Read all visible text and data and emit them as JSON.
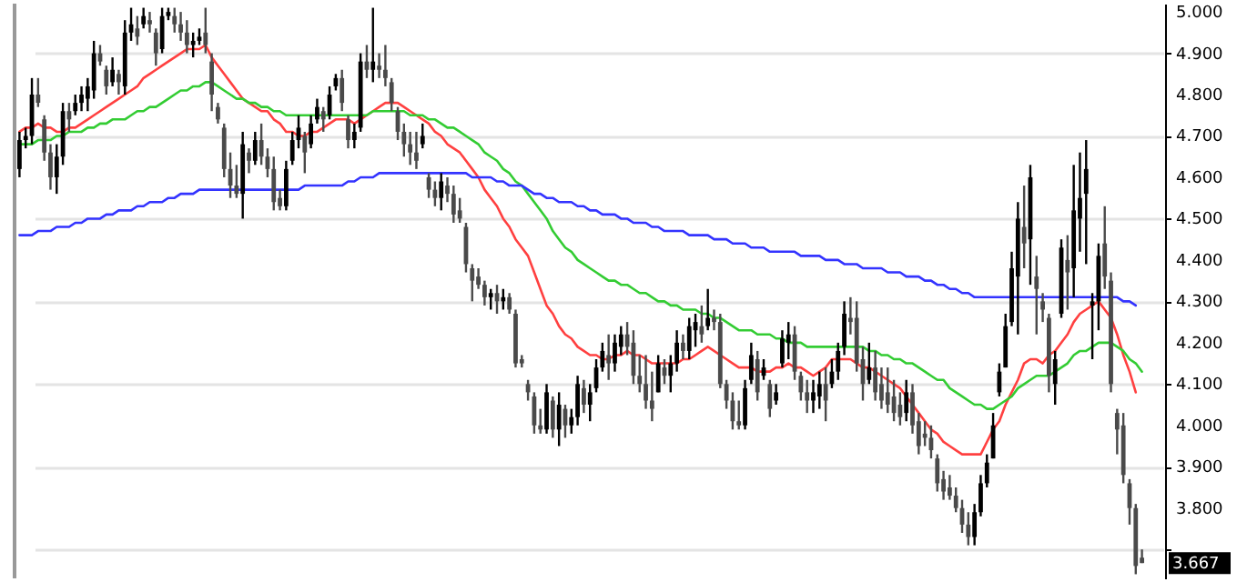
{
  "chart_data": {
    "type": "candlestick",
    "categories": [
      null,
      null,
      null,
      null,
      null,
      null,
      null,
      null,
      null,
      null,
      null,
      null,
      null,
      null,
      null,
      null,
      null,
      null,
      null,
      null,
      null,
      null,
      null,
      null,
      null,
      null,
      null,
      null,
      null,
      null,
      null,
      null,
      null,
      null,
      null,
      null,
      null,
      null,
      null,
      null,
      null,
      null,
      null,
      null,
      null,
      null,
      null,
      null,
      null,
      null,
      null,
      null,
      null,
      null,
      null,
      null,
      null,
      null,
      null,
      null,
      null,
      null,
      null,
      null,
      null,
      null,
      null,
      null,
      null,
      null,
      null,
      null,
      null,
      null,
      null,
      null,
      null,
      null,
      null,
      null,
      null,
      null,
      null,
      null,
      null,
      null,
      null,
      null,
      null,
      null,
      null,
      null,
      null,
      null,
      null,
      null,
      null,
      null,
      null,
      null,
      null,
      null,
      null,
      null,
      null,
      null,
      null,
      null,
      null,
      null,
      null,
      null,
      null,
      null,
      null,
      null,
      null,
      null,
      null,
      null,
      null,
      null,
      null,
      null,
      null,
      null,
      null,
      null,
      null,
      null,
      null,
      null,
      null,
      null,
      null,
      null,
      null,
      null,
      null,
      null,
      null,
      null,
      null,
      null,
      null,
      null,
      null,
      null,
      null,
      null,
      null,
      null,
      null,
      null,
      null,
      null,
      null,
      null,
      null,
      null,
      null,
      null,
      null,
      null,
      null,
      null,
      null,
      null,
      null,
      null,
      null,
      null,
      null,
      null,
      null,
      null,
      null,
      null,
      null,
      null,
      null,
      null
    ],
    "ohlc": [
      [
        4.62,
        4.71,
        4.6,
        4.69
      ],
      [
        4.69,
        4.72,
        4.67,
        4.7
      ],
      [
        4.7,
        4.84,
        4.68,
        4.8
      ],
      [
        4.8,
        4.84,
        4.77,
        4.78
      ],
      [
        4.74,
        4.75,
        4.64,
        4.66
      ],
      [
        4.66,
        4.68,
        4.57,
        4.6
      ],
      [
        4.6,
        4.68,
        4.56,
        4.65
      ],
      [
        4.65,
        4.78,
        4.63,
        4.76
      ],
      [
        4.76,
        4.78,
        4.71,
        4.74
      ],
      [
        4.76,
        4.8,
        4.75,
        4.78
      ],
      [
        4.78,
        4.82,
        4.76,
        4.8
      ],
      [
        4.79,
        4.84,
        4.76,
        4.82
      ],
      [
        4.81,
        4.93,
        4.79,
        4.9
      ],
      [
        4.9,
        4.92,
        4.87,
        4.88
      ],
      [
        4.86,
        4.87,
        4.8,
        4.82
      ],
      [
        4.83,
        4.89,
        4.82,
        4.86
      ],
      [
        4.85,
        4.86,
        4.8,
        4.83
      ],
      [
        4.82,
        4.98,
        4.8,
        4.95
      ],
      [
        4.95,
        5.01,
        4.93,
        4.97
      ],
      [
        4.96,
        4.99,
        4.92,
        4.94
      ],
      [
        4.97,
        5.01,
        4.96,
        4.99
      ],
      [
        4.98,
        5.0,
        4.95,
        4.97
      ],
      [
        4.95,
        4.96,
        4.87,
        4.9
      ],
      [
        4.91,
        5.01,
        4.9,
        4.99
      ],
      [
        4.99,
        5.01,
        4.98,
        5.0
      ],
      [
        4.99,
        5.01,
        4.95,
        4.97
      ],
      [
        4.97,
        5.0,
        4.93,
        4.95
      ],
      [
        4.95,
        4.98,
        4.9,
        4.92
      ],
      [
        4.92,
        4.95,
        4.89,
        4.93
      ],
      [
        4.93,
        4.96,
        4.92,
        4.94
      ],
      [
        4.95,
        5.01,
        4.9,
        4.92
      ],
      [
        4.88,
        4.9,
        4.76,
        4.8
      ],
      [
        4.77,
        4.78,
        4.73,
        4.74
      ],
      [
        4.72,
        4.73,
        4.6,
        4.62
      ],
      [
        4.62,
        4.66,
        4.55,
        4.58
      ],
      [
        4.58,
        4.63,
        4.55,
        4.56
      ],
      [
        4.56,
        4.71,
        4.5,
        4.68
      ],
      [
        4.66,
        4.67,
        4.61,
        4.64
      ],
      [
        4.64,
        4.71,
        4.63,
        4.69
      ],
      [
        4.69,
        4.73,
        4.63,
        4.65
      ],
      [
        4.65,
        4.67,
        4.6,
        4.62
      ],
      [
        4.62,
        4.65,
        4.52,
        4.54
      ],
      [
        4.55,
        4.57,
        4.52,
        4.53
      ],
      [
        4.53,
        4.64,
        4.52,
        4.62
      ],
      [
        4.64,
        4.71,
        4.63,
        4.69
      ],
      [
        4.69,
        4.75,
        4.67,
        4.72
      ],
      [
        4.7,
        4.71,
        4.61,
        4.66
      ],
      [
        4.68,
        4.75,
        4.67,
        4.73
      ],
      [
        4.74,
        4.79,
        4.73,
        4.77
      ],
      [
        4.76,
        4.77,
        4.71,
        4.74
      ],
      [
        4.75,
        4.82,
        4.74,
        4.8
      ],
      [
        4.82,
        4.85,
        4.81,
        4.84
      ],
      [
        4.84,
        4.86,
        4.76,
        4.78
      ],
      [
        4.74,
        4.75,
        4.67,
        4.69
      ],
      [
        4.69,
        4.73,
        4.67,
        4.71
      ],
      [
        4.72,
        4.9,
        4.71,
        4.88
      ],
      [
        4.88,
        4.92,
        4.84,
        4.86
      ],
      [
        4.86,
        5.01,
        4.83,
        4.88
      ],
      [
        4.87,
        4.9,
        4.84,
        4.86
      ],
      [
        4.86,
        4.92,
        4.82,
        4.84
      ],
      [
        4.83,
        4.84,
        4.76,
        4.78
      ],
      [
        4.76,
        4.77,
        4.69,
        4.71
      ],
      [
        4.71,
        4.73,
        4.65,
        4.68
      ],
      [
        4.68,
        4.71,
        4.63,
        4.66
      ],
      [
        4.66,
        4.71,
        4.62,
        4.64
      ],
      [
        4.68,
        4.73,
        4.67,
        4.7
      ],
      [
        4.6,
        4.61,
        4.55,
        4.57
      ],
      [
        4.57,
        4.59,
        4.53,
        4.55
      ],
      [
        4.55,
        4.61,
        4.52,
        4.59
      ],
      [
        4.58,
        4.6,
        4.54,
        4.56
      ],
      [
        4.56,
        4.58,
        4.49,
        4.51
      ],
      [
        4.52,
        4.55,
        4.49,
        4.5
      ],
      [
        4.48,
        4.49,
        4.37,
        4.39
      ],
      [
        4.38,
        4.39,
        4.3,
        4.35
      ],
      [
        4.36,
        4.38,
        4.33,
        4.34
      ],
      [
        4.34,
        4.35,
        4.29,
        4.31
      ],
      [
        4.31,
        4.33,
        4.28,
        4.32
      ],
      [
        4.32,
        4.34,
        4.27,
        4.3
      ],
      [
        4.3,
        4.33,
        4.28,
        4.31
      ],
      [
        4.31,
        4.32,
        4.27,
        4.28
      ],
      [
        4.27,
        4.28,
        4.14,
        4.15
      ],
      [
        4.16,
        4.17,
        4.14,
        4.15
      ],
      [
        4.1,
        4.11,
        4.06,
        4.08
      ],
      [
        4.07,
        4.08,
        3.98,
        4.0
      ],
      [
        4.0,
        4.04,
        3.98,
        3.99
      ],
      [
        3.99,
        4.1,
        3.98,
        4.08
      ],
      [
        4.06,
        4.07,
        3.97,
        3.99
      ],
      [
        3.99,
        4.08,
        3.95,
        4.05
      ],
      [
        4.04,
        4.05,
        3.97,
        4.0
      ],
      [
        4.0,
        4.04,
        3.98,
        4.02
      ],
      [
        4.02,
        4.12,
        4.0,
        4.1
      ],
      [
        4.09,
        4.11,
        4.03,
        4.05
      ],
      [
        4.05,
        4.1,
        4.01,
        4.08
      ],
      [
        4.09,
        4.16,
        4.08,
        4.14
      ],
      [
        4.14,
        4.2,
        4.13,
        4.18
      ],
      [
        4.17,
        4.22,
        4.11,
        4.15
      ],
      [
        4.15,
        4.22,
        4.13,
        4.2
      ],
      [
        4.19,
        4.24,
        4.17,
        4.22
      ],
      [
        4.22,
        4.25,
        4.17,
        4.19
      ],
      [
        4.2,
        4.23,
        4.1,
        4.12
      ],
      [
        4.12,
        4.17,
        4.08,
        4.1
      ],
      [
        4.1,
        4.17,
        4.04,
        4.06
      ],
      [
        4.06,
        4.13,
        4.01,
        4.04
      ],
      [
        4.08,
        4.17,
        4.08,
        4.15
      ],
      [
        4.14,
        4.16,
        4.1,
        4.12
      ],
      [
        4.12,
        4.17,
        4.08,
        4.15
      ],
      [
        4.15,
        4.23,
        4.13,
        4.2
      ],
      [
        4.2,
        4.22,
        4.16,
        4.18
      ],
      [
        4.18,
        4.26,
        4.16,
        4.24
      ],
      [
        4.23,
        4.27,
        4.19,
        4.25
      ],
      [
        4.24,
        4.29,
        4.2,
        4.22
      ],
      [
        4.24,
        4.33,
        4.23,
        4.26
      ],
      [
        4.26,
        4.28,
        4.23,
        4.25
      ],
      [
        4.25,
        4.27,
        4.09,
        4.1
      ],
      [
        4.1,
        4.11,
        4.04,
        4.06
      ],
      [
        4.06,
        4.08,
        3.99,
        4.01
      ],
      [
        4.01,
        4.06,
        3.99,
        4.0
      ],
      [
        4.0,
        4.11,
        3.99,
        4.09
      ],
      [
        4.11,
        4.2,
        4.1,
        4.17
      ],
      [
        4.16,
        4.18,
        4.06,
        4.08
      ],
      [
        4.12,
        4.16,
        4.11,
        4.14
      ],
      [
        4.1,
        4.11,
        4.02,
        4.04
      ],
      [
        4.06,
        4.1,
        4.05,
        4.08
      ],
      [
        4.15,
        4.23,
        4.14,
        4.21
      ],
      [
        4.2,
        4.25,
        4.16,
        4.22
      ],
      [
        4.22,
        4.24,
        4.11,
        4.13
      ],
      [
        4.12,
        4.13,
        4.06,
        4.08
      ],
      [
        4.08,
        4.11,
        4.03,
        4.06
      ],
      [
        4.06,
        4.11,
        4.03,
        4.08
      ],
      [
        4.07,
        4.13,
        4.04,
        4.1
      ],
      [
        4.1,
        4.14,
        4.01,
        4.06
      ],
      [
        4.1,
        4.16,
        4.09,
        4.13
      ],
      [
        4.13,
        4.2,
        4.11,
        4.18
      ],
      [
        4.19,
        4.3,
        4.17,
        4.27
      ],
      [
        4.26,
        4.31,
        4.22,
        4.25
      ],
      [
        4.26,
        4.3,
        4.13,
        4.15
      ],
      [
        4.16,
        4.19,
        4.06,
        4.1
      ],
      [
        4.11,
        4.2,
        4.1,
        4.14
      ],
      [
        4.14,
        4.18,
        4.06,
        4.08
      ],
      [
        4.1,
        4.14,
        4.04,
        4.06
      ],
      [
        4.08,
        4.14,
        4.03,
        4.05
      ],
      [
        4.07,
        4.11,
        4.01,
        4.03
      ],
      [
        4.05,
        4.08,
        4.0,
        4.02
      ],
      [
        4.03,
        4.11,
        4.01,
        4.08
      ],
      [
        4.08,
        4.1,
        3.98,
        4.0
      ],
      [
        4.01,
        4.03,
        3.93,
        3.95
      ],
      [
        3.98,
        4.01,
        3.95,
        3.97
      ],
      [
        3.97,
        4.0,
        3.92,
        3.94
      ],
      [
        3.92,
        3.93,
        3.84,
        3.86
      ],
      [
        3.87,
        3.89,
        3.82,
        3.84
      ],
      [
        3.85,
        3.88,
        3.82,
        3.83
      ],
      [
        3.83,
        3.85,
        3.79,
        3.8
      ],
      [
        3.8,
        3.82,
        3.74,
        3.76
      ],
      [
        3.76,
        3.79,
        3.71,
        3.73
      ],
      [
        3.73,
        3.81,
        3.71,
        3.79
      ],
      [
        3.79,
        3.88,
        3.78,
        3.86
      ],
      [
        3.86,
        3.93,
        3.85,
        3.91
      ],
      [
        3.92,
        4.03,
        3.92,
        4.0
      ],
      [
        4.08,
        4.15,
        4.07,
        4.13
      ],
      [
        4.14,
        4.27,
        4.14,
        4.24
      ],
      [
        4.25,
        4.42,
        4.24,
        4.38
      ],
      [
        4.36,
        4.54,
        4.22,
        4.5
      ],
      [
        4.48,
        4.58,
        4.38,
        4.44
      ],
      [
        4.45,
        4.63,
        4.34,
        4.6
      ],
      [
        4.36,
        4.41,
        4.22,
        4.33
      ],
      [
        4.3,
        4.32,
        4.25,
        4.28
      ],
      [
        4.26,
        4.27,
        4.08,
        4.12
      ],
      [
        4.1,
        4.18,
        4.05,
        4.16
      ],
      [
        4.27,
        4.45,
        4.26,
        4.43
      ],
      [
        4.4,
        4.46,
        4.28,
        4.37
      ],
      [
        4.38,
        4.63,
        4.31,
        4.52
      ],
      [
        4.5,
        4.66,
        4.42,
        4.55
      ],
      [
        4.56,
        4.69,
        4.39,
        4.62
      ],
      [
        4.29,
        4.32,
        4.16,
        4.3
      ],
      [
        4.3,
        4.44,
        4.23,
        4.41
      ],
      [
        4.44,
        4.53,
        4.33,
        4.36
      ],
      [
        4.35,
        4.37,
        4.08,
        4.1
      ],
      [
        4.03,
        4.04,
        3.93,
        3.99
      ],
      [
        4.0,
        4.03,
        3.86,
        3.88
      ],
      [
        3.86,
        3.87,
        3.76,
        3.8
      ],
      [
        3.8,
        3.81,
        3.64,
        3.66
      ],
      [
        3.68,
        3.7,
        3.667,
        3.667
      ]
    ],
    "series": [
      {
        "type": "line",
        "color": "#ff4040",
        "values": [
          4.71,
          4.72,
          4.72,
          4.73,
          4.72,
          4.72,
          4.71,
          4.71,
          4.72,
          4.72,
          4.73,
          4.74,
          4.75,
          4.76,
          4.77,
          4.78,
          4.79,
          4.8,
          4.81,
          4.82,
          4.84,
          4.85,
          4.86,
          4.87,
          4.88,
          4.89,
          4.9,
          4.91,
          4.91,
          4.91,
          4.92,
          4.89,
          4.87,
          4.85,
          4.83,
          4.81,
          4.79,
          4.78,
          4.77,
          4.76,
          4.76,
          4.74,
          4.73,
          4.71,
          4.71,
          4.7,
          4.7,
          4.71,
          4.71,
          4.72,
          4.73,
          4.74,
          4.74,
          4.74,
          4.73,
          4.74,
          4.75,
          4.76,
          4.77,
          4.78,
          4.78,
          4.78,
          4.77,
          4.76,
          4.75,
          4.74,
          4.73,
          4.71,
          4.7,
          4.68,
          4.67,
          4.66,
          4.64,
          4.62,
          4.6,
          4.57,
          4.55,
          4.53,
          4.5,
          4.48,
          4.45,
          4.43,
          4.41,
          4.37,
          4.33,
          4.29,
          4.27,
          4.24,
          4.22,
          4.21,
          4.19,
          4.18,
          4.17,
          4.17,
          4.16,
          4.16,
          4.17,
          4.17,
          4.18,
          4.17,
          4.17,
          4.16,
          4.15,
          4.15,
          4.15,
          4.15,
          4.15,
          4.16,
          4.16,
          4.17,
          4.18,
          4.19,
          4.18,
          4.17,
          4.16,
          4.15,
          4.14,
          4.14,
          4.14,
          4.13,
          4.13,
          4.13,
          4.14,
          4.14,
          4.15,
          4.14,
          4.14,
          4.13,
          4.12,
          4.13,
          4.14,
          4.16,
          4.16,
          4.16,
          4.16,
          4.15,
          4.14,
          4.14,
          4.13,
          4.12,
          4.11,
          4.1,
          4.09,
          4.07,
          4.05,
          4.03,
          4.01,
          3.99,
          3.98,
          3.96,
          3.95,
          3.94,
          3.93,
          3.93,
          3.93,
          3.93,
          3.96,
          3.99,
          4.01,
          4.05,
          4.08,
          4.11,
          4.15,
          4.16,
          4.16,
          4.15,
          4.17,
          4.18,
          4.2,
          4.22,
          4.25,
          4.27,
          4.28,
          4.29,
          4.3,
          4.28,
          4.26,
          4.22,
          4.17,
          4.13,
          4.08,
          null
        ]
      },
      {
        "type": "line",
        "color": "#33cc33",
        "values": [
          4.68,
          4.68,
          4.68,
          4.69,
          4.69,
          4.69,
          4.7,
          4.7,
          4.71,
          4.71,
          4.71,
          4.72,
          4.72,
          4.73,
          4.73,
          4.74,
          4.74,
          4.74,
          4.75,
          4.76,
          4.76,
          4.77,
          4.77,
          4.78,
          4.79,
          4.8,
          4.81,
          4.81,
          4.82,
          4.82,
          4.83,
          4.83,
          4.82,
          4.81,
          4.8,
          4.79,
          4.79,
          4.78,
          4.78,
          4.77,
          4.77,
          4.76,
          4.76,
          4.75,
          4.75,
          4.75,
          4.75,
          4.75,
          4.75,
          4.75,
          4.75,
          4.75,
          4.75,
          4.75,
          4.75,
          4.75,
          4.75,
          4.76,
          4.76,
          4.76,
          4.76,
          4.76,
          4.76,
          4.75,
          4.75,
          4.75,
          4.74,
          4.74,
          4.73,
          4.72,
          4.72,
          4.71,
          4.7,
          4.69,
          4.68,
          4.66,
          4.65,
          4.64,
          4.62,
          4.61,
          4.59,
          4.58,
          4.56,
          4.54,
          4.52,
          4.5,
          4.47,
          4.45,
          4.43,
          4.42,
          4.4,
          4.39,
          4.38,
          4.37,
          4.36,
          4.35,
          4.35,
          4.34,
          4.34,
          4.33,
          4.32,
          4.32,
          4.31,
          4.3,
          4.3,
          4.29,
          4.29,
          4.28,
          4.28,
          4.28,
          4.27,
          4.27,
          4.26,
          4.26,
          4.25,
          4.24,
          4.23,
          4.23,
          4.23,
          4.22,
          4.22,
          4.22,
          4.21,
          4.21,
          4.2,
          4.2,
          4.2,
          4.19,
          4.19,
          4.19,
          4.19,
          4.19,
          4.19,
          4.19,
          4.19,
          4.19,
          4.19,
          4.18,
          4.18,
          4.17,
          4.17,
          4.16,
          4.16,
          4.15,
          4.15,
          4.14,
          4.13,
          4.12,
          4.11,
          4.11,
          4.09,
          4.08,
          4.07,
          4.06,
          4.05,
          4.05,
          4.04,
          4.04,
          4.05,
          4.06,
          4.07,
          4.09,
          4.1,
          4.11,
          4.12,
          4.12,
          4.12,
          4.13,
          4.14,
          4.15,
          4.17,
          4.18,
          4.18,
          4.19,
          4.2,
          4.2,
          4.2,
          4.19,
          4.18,
          4.16,
          4.15,
          4.13
        ]
      },
      {
        "type": "line",
        "color": "#3333ff",
        "values": [
          4.46,
          4.46,
          4.46,
          4.47,
          4.47,
          4.47,
          4.48,
          4.48,
          4.48,
          4.49,
          4.49,
          4.5,
          4.5,
          4.5,
          4.51,
          4.51,
          4.52,
          4.52,
          4.52,
          4.53,
          4.53,
          4.54,
          4.54,
          4.54,
          4.55,
          4.55,
          4.56,
          4.56,
          4.56,
          4.57,
          4.57,
          4.57,
          4.57,
          4.57,
          4.57,
          4.57,
          4.57,
          4.57,
          4.57,
          4.57,
          4.57,
          4.57,
          4.57,
          4.57,
          4.57,
          4.57,
          4.58,
          4.58,
          4.58,
          4.58,
          4.58,
          4.58,
          4.58,
          4.59,
          4.59,
          4.6,
          4.6,
          4.6,
          4.61,
          4.61,
          4.61,
          4.61,
          4.61,
          4.61,
          4.61,
          4.61,
          4.61,
          4.61,
          4.61,
          4.61,
          4.61,
          4.61,
          4.61,
          4.6,
          4.6,
          4.6,
          4.6,
          4.59,
          4.59,
          4.58,
          4.58,
          4.58,
          4.57,
          4.56,
          4.56,
          4.55,
          4.55,
          4.54,
          4.54,
          4.54,
          4.53,
          4.53,
          4.52,
          4.52,
          4.51,
          4.51,
          4.51,
          4.5,
          4.5,
          4.49,
          4.49,
          4.49,
          4.48,
          4.48,
          4.47,
          4.47,
          4.47,
          4.47,
          4.46,
          4.46,
          4.46,
          4.46,
          4.45,
          4.45,
          4.45,
          4.44,
          4.44,
          4.44,
          4.43,
          4.43,
          4.43,
          4.42,
          4.42,
          4.42,
          4.42,
          4.42,
          4.41,
          4.41,
          4.41,
          4.41,
          4.4,
          4.4,
          4.4,
          4.39,
          4.39,
          4.39,
          4.38,
          4.38,
          4.38,
          4.38,
          4.37,
          4.37,
          4.37,
          4.36,
          4.36,
          4.36,
          4.35,
          4.35,
          4.34,
          4.34,
          4.33,
          4.33,
          4.32,
          4.32,
          4.31,
          4.31,
          4.31,
          4.31,
          4.31,
          4.31,
          4.31,
          4.31,
          4.31,
          4.31,
          4.31,
          4.31,
          4.31,
          4.31,
          4.31,
          4.31,
          4.31,
          4.31,
          4.31,
          4.31,
          4.31,
          4.31,
          4.31,
          4.31,
          4.3,
          4.3,
          4.29,
          null
        ]
      }
    ],
    "ylim": [
      3.63,
      5.02
    ],
    "yticks": [
      {
        "value": 3.7,
        "label": null
      },
      {
        "value": 3.8,
        "label": "3.800"
      },
      {
        "value": 3.9,
        "label": "3.900"
      },
      {
        "value": 4.0,
        "label": "4.000"
      },
      {
        "value": 4.1,
        "label": "4.100"
      },
      {
        "value": 4.2,
        "label": "4.200"
      },
      {
        "value": 4.3,
        "label": "4.300"
      },
      {
        "value": 4.4,
        "label": "4.400"
      },
      {
        "value": 4.5,
        "label": "4.500"
      },
      {
        "value": 4.6,
        "label": "4.600"
      },
      {
        "value": 4.7,
        "label": "4.700"
      },
      {
        "value": 4.8,
        "label": "4.800"
      },
      {
        "value": 4.9,
        "label": "4.900"
      },
      {
        "value": 5.0,
        "label": "5.000"
      }
    ],
    "tick_labels": "y",
    "grid": "y",
    "annotations": [
      "3.667"
    ]
  }
}
